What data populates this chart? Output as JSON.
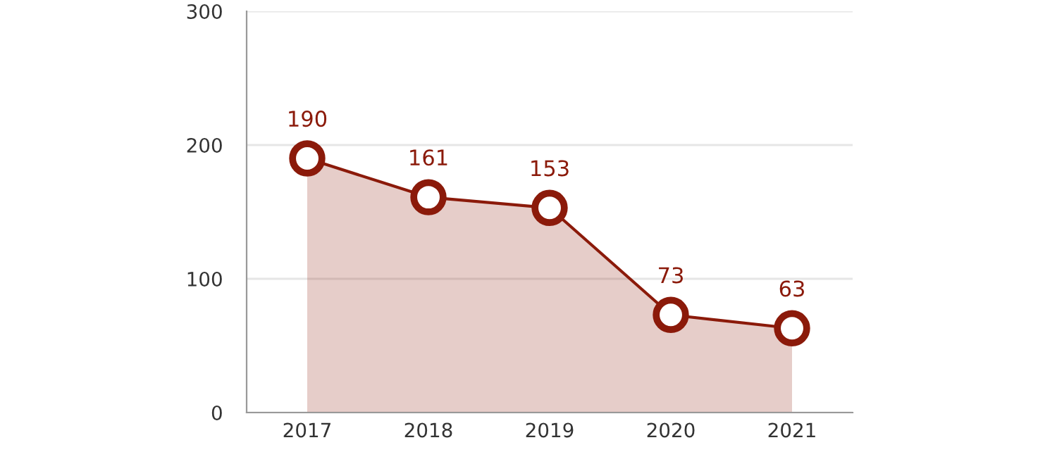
{
  "chart_data": {
    "type": "area",
    "categories": [
      "2017",
      "2018",
      "2019",
      "2020",
      "2021"
    ],
    "series": [
      {
        "color": "#8b1a0a",
        "values": [
          190,
          161,
          153,
          73,
          63
        ]
      }
    ],
    "ylim": [
      0,
      300
    ],
    "yticks": [
      0,
      100,
      200,
      300
    ],
    "grid": "y",
    "marker": "circle",
    "line_style": "solid",
    "data_labels": true,
    "legend": false
  }
}
